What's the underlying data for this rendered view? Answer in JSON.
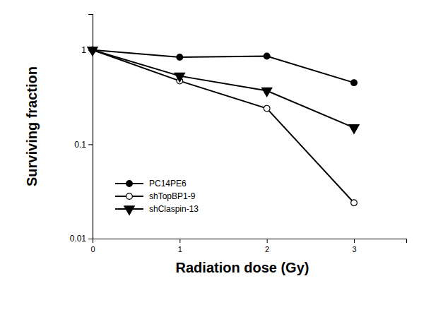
{
  "chart_data": {
    "type": "line",
    "x_label": "Radiation dose (Gy)",
    "y_label": "Surviving fraction",
    "x": [
      0,
      1,
      2,
      3
    ],
    "series": [
      {
        "name": "PC14PE6",
        "color": "#000000",
        "marker": "circle",
        "line_style": "solid",
        "values": [
          1,
          0.84,
          0.86,
          0.45
        ]
      },
      {
        "name": "shTopBP1-9",
        "color": "#000000",
        "marker": "circle-open",
        "line_style": "solid",
        "values": [
          1,
          0.47,
          0.24,
          0.024
        ]
      },
      {
        "name": "shClaspin-13",
        "color": "#000000",
        "marker": "triangle-down",
        "line_style": "solid",
        "values": [
          1,
          0.53,
          0.37,
          0.15
        ]
      }
    ],
    "xlim": [
      0,
      3.6
    ],
    "xticks": [
      0,
      1,
      2,
      3
    ],
    "ylim": [
      0.01,
      2.4
    ],
    "yticks": [
      0.01,
      0.1,
      1
    ],
    "log": "y",
    "grid": false,
    "legend": "lower left"
  }
}
